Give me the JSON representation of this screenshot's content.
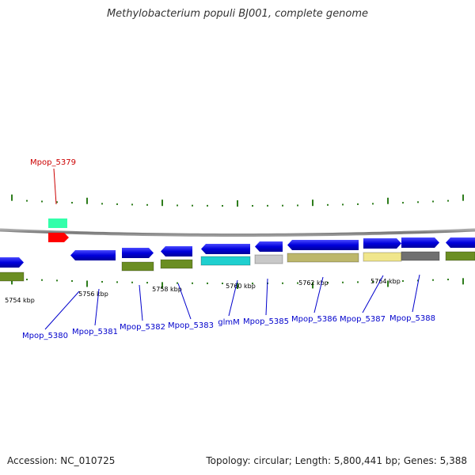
{
  "title": "Methylobacterium populi BJ001, complete genome",
  "footer": {
    "accession": "Accession: NC_010725",
    "topology": "Topology: circular; Length: 5,800,441 bp; Genes: 5,388"
  },
  "colors": {
    "backbone": "#808080",
    "tick": "#2e7d1c",
    "label_link": "#0000cc",
    "highlight": "#cc0000"
  },
  "kbp_labels": [
    "5754 kbp",
    "5756 kbp",
    "5758 kbp",
    "5760 kbp",
    "5762 kbp",
    "5764 kbp"
  ],
  "highlight_gene": {
    "label": "Mpop_5379",
    "color": "#ff0000",
    "cog_color": "#33ffaa"
  },
  "genes": [
    {
      "label": "Mpop_5380",
      "color": "#0000dd",
      "cog_color": "#6b8e23",
      "strand": "forward"
    },
    {
      "label": "Mpop_5381",
      "color": "#0000dd",
      "cog_color": null,
      "strand": "reverse"
    },
    {
      "label": "Mpop_5382",
      "color": "#0000dd",
      "cog_color": "#6b8e23",
      "strand": "forward"
    },
    {
      "label": "Mpop_5383",
      "color": "#0000dd",
      "cog_color": "#6b8e23",
      "strand": "reverse"
    },
    {
      "label": "glmM",
      "color": "#0000dd",
      "cog_color": "#1fcfcf",
      "strand": "reverse"
    },
    {
      "label": "Mpop_5385",
      "color": "#0000dd",
      "cog_color": "#c8c8c8",
      "strand": "reverse"
    },
    {
      "label": "Mpop_5386",
      "color": "#0000dd",
      "cog_color": "#bdb76b",
      "strand": "reverse"
    },
    {
      "label": "Mpop_5387",
      "color": "#0000dd",
      "cog_color": "#f0e68c",
      "strand": "forward"
    },
    {
      "label": "Mpop_5388",
      "color": "#0000dd",
      "cog_color": "#707070",
      "strand": "forward"
    },
    {
      "label": "",
      "color": "#0000dd",
      "cog_color": "#6b8e23",
      "strand": "reverse"
    }
  ]
}
